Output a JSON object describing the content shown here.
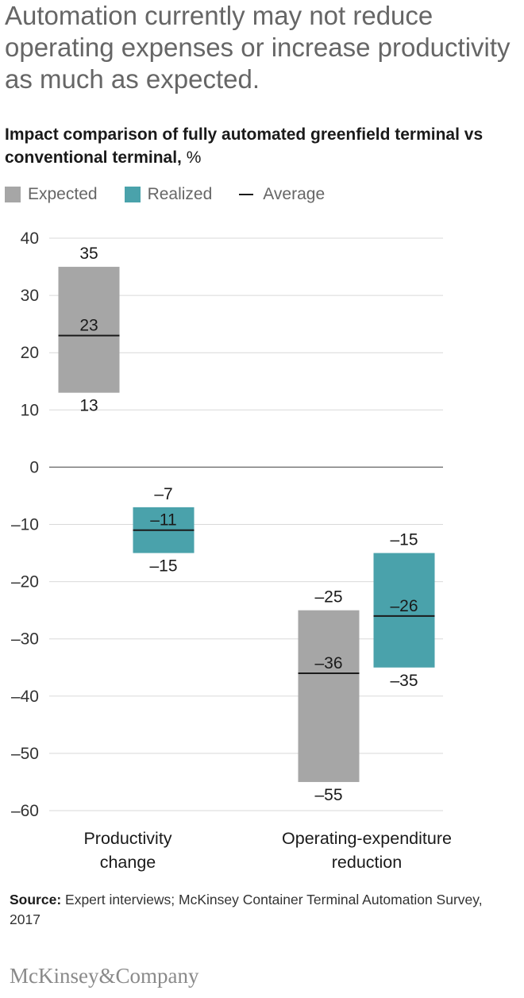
{
  "headline": "Automation currently may not reduce operating expenses or increase productivity as much as expected.",
  "subtitle": "Impact comparison of fully automated greenfield terminal vs conventional terminal,",
  "subtitle_unit": "%",
  "legend": {
    "expected": "Expected",
    "realized": "Realized",
    "average": "Average"
  },
  "colors": {
    "expected": "#a6a6a6",
    "realized": "#4aa2ab",
    "average": "#1a1a1a",
    "grid": "#d9d9d9",
    "zero": "#666666"
  },
  "chart_data": {
    "type": "floating-bar",
    "yticks": [
      40,
      30,
      20,
      10,
      0,
      -10,
      -20,
      -30,
      -40,
      -50,
      -60
    ],
    "ytick_labels": [
      "40",
      "30",
      "20",
      "10",
      "0",
      "–10",
      "–20",
      "–30",
      "–40",
      "–50",
      "–60"
    ],
    "ylim": [
      -60,
      40
    ],
    "grid": true,
    "legend_position": "top-left",
    "categories": [
      "Productivity change",
      "Operating-expenditure reduction"
    ],
    "category_lines": [
      [
        "Productivity",
        "change"
      ],
      [
        "Operating-expenditure",
        "reduction"
      ]
    ],
    "series": [
      {
        "name": "Expected",
        "ranges": [
          {
            "high": 35,
            "average": 23,
            "low": 13,
            "labels": {
              "high": "35",
              "average": "23",
              "low": "13"
            }
          },
          {
            "high": -25,
            "average": -36,
            "low": -55,
            "labels": {
              "high": "–25",
              "average": "–36",
              "low": "–55"
            }
          }
        ]
      },
      {
        "name": "Realized",
        "ranges": [
          {
            "high": -7,
            "average": -11,
            "low": -15,
            "labels": {
              "high": "–7",
              "average": "–11",
              "low": "–15"
            }
          },
          {
            "high": -15,
            "average": -26,
            "low": -35,
            "labels": {
              "high": "–15",
              "average": "–26",
              "low": "–35"
            }
          }
        ]
      }
    ]
  },
  "source_label": "Source:",
  "source_text": "Expert interviews; McKinsey Container Terminal Automation Survey, 2017",
  "brand": "McKinsey&Company"
}
